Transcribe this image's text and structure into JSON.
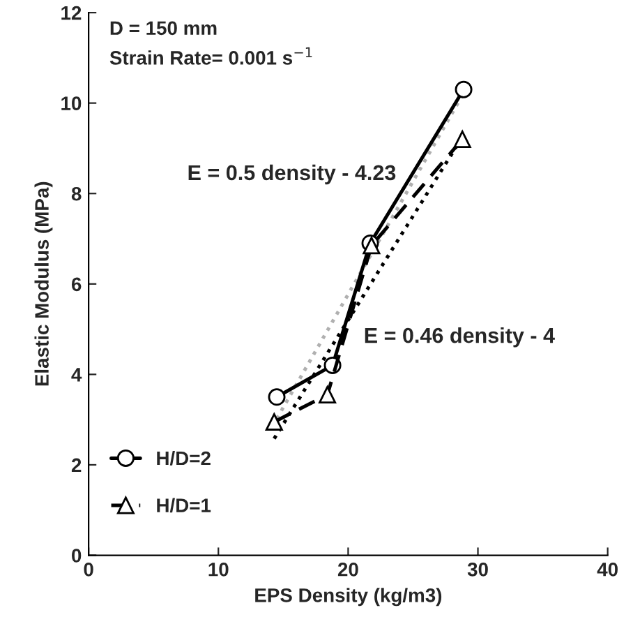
{
  "chart_data": {
    "type": "line",
    "xlabel": "EPS Density (kg/m3)",
    "ylabel": "Elastic Modulus (MPa)",
    "xlim": [
      0,
      40
    ],
    "xticks": [
      0,
      10,
      20,
      30,
      40
    ],
    "ylim": [
      0,
      12
    ],
    "yticks": [
      0,
      2,
      4,
      6,
      8,
      10,
      12
    ],
    "grid": false,
    "legend": "bottom left",
    "annotations": [
      "D = 150 mm",
      "Strain Rate= 0.001 s$^{−1}$",
      "E = 0.5 density - 4.23",
      "E = 0.46 density - 4"
    ],
    "series": [
      {
        "name": "H/D=2",
        "color": "#000000",
        "marker": "circle",
        "line_style": "solid",
        "x": [
          14.5,
          18.8,
          21.7,
          28.9
        ],
        "values": [
          3.5,
          4.2,
          6.9,
          10.3
        ]
      },
      {
        "name": "H/D=1",
        "color": "#000000",
        "marker": "triangle",
        "line_style": "dashed",
        "x": [
          14.3,
          18.4,
          21.8,
          28.8
        ],
        "values": [
          2.95,
          3.55,
          6.85,
          9.2
        ]
      },
      {
        "color": "#b0b0b0",
        "marker": "none",
        "line_style": "dotted",
        "x": [
          14.5,
          28.9
        ],
        "values": [
          3.02,
          10.22
        ]
      },
      {
        "color": "#000000",
        "marker": "none",
        "line_style": "dotted",
        "x": [
          14.3,
          28.8
        ],
        "values": [
          2.58,
          9.25
        ]
      }
    ]
  }
}
